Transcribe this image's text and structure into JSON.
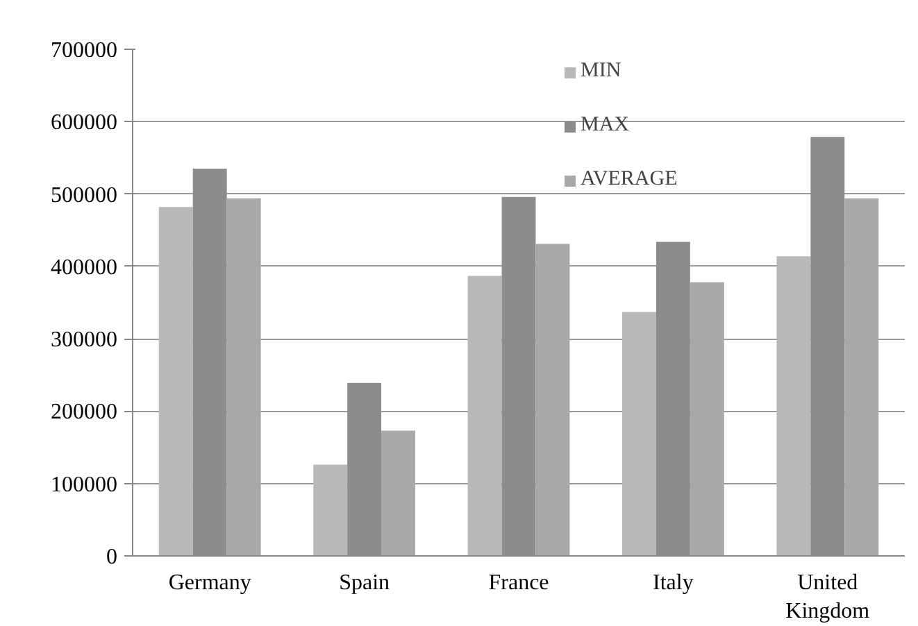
{
  "chart_data": {
    "type": "bar",
    "categories": [
      "Germany",
      "Spain",
      "France",
      "Italy",
      "United Kingdom"
    ],
    "series": [
      {
        "name": "MIN",
        "color": "#b8b8b8",
        "values": [
          482000,
          126000,
          387000,
          337000,
          414000
        ]
      },
      {
        "name": "MAX",
        "color": "#8c8c8c",
        "values": [
          535000,
          239000,
          496000,
          434000,
          579000
        ]
      },
      {
        "name": "AVERAGE",
        "color": "#a8a8a8",
        "values": [
          494000,
          173000,
          431000,
          378000,
          494000
        ]
      }
    ],
    "ylim": [
      0,
      700000
    ],
    "yticks": [
      0,
      100000,
      200000,
      300000,
      400000,
      500000,
      600000,
      700000
    ],
    "grid": "y",
    "legend": "top right"
  }
}
